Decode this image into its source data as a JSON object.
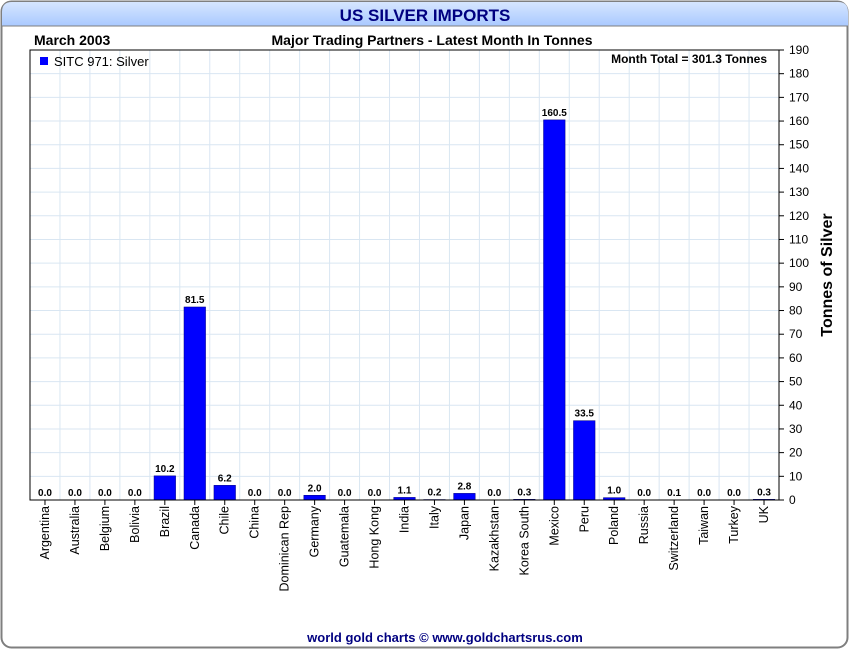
{
  "chart_data": {
    "type": "bar",
    "title": "US SILVER IMPORTS",
    "subtitle": "Major Trading Partners - Latest Month In Tonnes",
    "period": "March 2003",
    "month_total": "Month Total = 301.3 Tonnes",
    "ylabel": "Tonnes of Silver",
    "ylim": [
      0,
      190
    ],
    "ytick_step": 10,
    "grid": true,
    "legend_position": "top-left",
    "categories": [
      "Argentina",
      "Australia",
      "Belgium",
      "Bolivia",
      "Brazil",
      "Canada",
      "Chile",
      "China",
      "Dominican Rep",
      "Germany",
      "Guatemala",
      "Hong Kong",
      "India",
      "Italy",
      "Japan",
      "Kazakhstan",
      "Korea South",
      "Mexico",
      "Peru",
      "Poland",
      "Russia",
      "Switzerland",
      "Taiwan",
      "Turkey",
      "UK"
    ],
    "series": [
      {
        "name": "SITC 971: Silver",
        "color": "#0000ff",
        "values": [
          0.0,
          0.0,
          0.0,
          0.0,
          10.2,
          81.5,
          6.2,
          0.0,
          0.0,
          2.0,
          0.0,
          0.0,
          1.1,
          0.2,
          2.8,
          0.0,
          0.3,
          160.5,
          33.5,
          1.0,
          0.0,
          0.1,
          0.0,
          0.0,
          0.3
        ]
      }
    ],
    "value_labels": [
      "0.0",
      "0.0",
      "0.0",
      "0.0",
      "10.2",
      "81.5",
      "6.2",
      "0.0",
      "0.0",
      "2.0",
      "0.0",
      "0.0",
      "1.1",
      "0.2",
      "2.8",
      "0.0",
      "0.3",
      "160.5",
      "33.5",
      "1.0",
      "0.0",
      "0.1",
      "0.0",
      "0.0",
      "0.3"
    ]
  },
  "footer": "world gold charts © www.goldchartsrus.com",
  "colors": {
    "title_bar": "#b7d2ff",
    "title_text": "#000080",
    "bar": "#0000ff",
    "grid": "#d9e6f2",
    "footer_text": "#000080"
  }
}
